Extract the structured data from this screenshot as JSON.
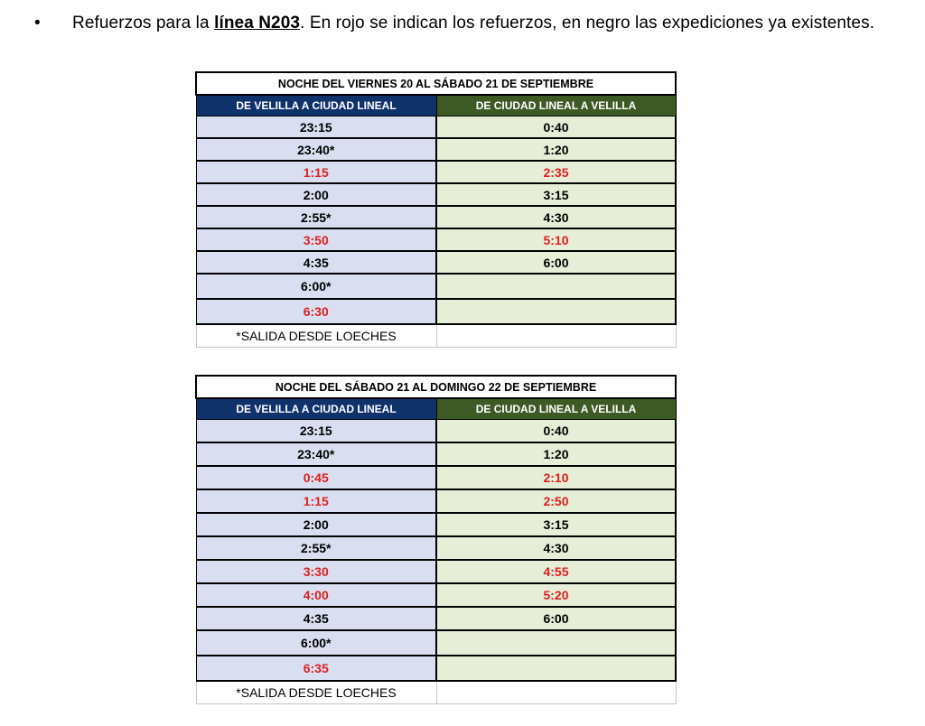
{
  "intro": {
    "bullet": "•",
    "text_before": "Refuerzos para la ",
    "line_name": "línea N203",
    "text_after": ". En rojo se indican los refuerzos, en negro las expediciones ya existentes."
  },
  "colors": {
    "reinforcement": "#e02020",
    "existing": "#000000",
    "header_left": "#10326b",
    "header_right": "#3d5a25"
  },
  "tables": [
    {
      "title": "NOCHE DEL VIERNES 20 AL SÁBADO 21 DE SEPTIEMBRE",
      "header_left": "DE VELILLA A CIUDAD LINEAL",
      "header_right": "DE CIUDAD LINEAL A VELILLA",
      "rows": [
        {
          "left": "23:15",
          "left_red": false,
          "right": "0:40",
          "right_red": false
        },
        {
          "left": "23:40*",
          "left_red": false,
          "right": "1:20",
          "right_red": false
        },
        {
          "left": "1:15",
          "left_red": true,
          "right": "2:35",
          "right_red": true
        },
        {
          "left": "2:00",
          "left_red": false,
          "right": "3:15",
          "right_red": false
        },
        {
          "left": "2:55*",
          "left_red": false,
          "right": "4:30",
          "right_red": false
        },
        {
          "left": "3:50",
          "left_red": true,
          "right": "5:10",
          "right_red": true
        },
        {
          "left": "4:35",
          "left_red": false,
          "right": "6:00",
          "right_red": false
        },
        {
          "left": "6:00*",
          "left_red": false,
          "right": "",
          "right_red": false
        },
        {
          "left": "6:30",
          "left_red": true,
          "right": "",
          "right_red": false
        }
      ],
      "note": "*SALIDA DESDE LOECHES"
    },
    {
      "title": "NOCHE DEL SÁBADO 21 AL DOMINGO 22 DE SEPTIEMBRE",
      "header_left": "DE VELILLA A CIUDAD LINEAL",
      "header_right": "DE CIUDAD LINEAL A VELILLA",
      "rows": [
        {
          "left": "23:15",
          "left_red": false,
          "right": "0:40",
          "right_red": false
        },
        {
          "left": "23:40*",
          "left_red": false,
          "right": "1:20",
          "right_red": false
        },
        {
          "left": "0:45",
          "left_red": true,
          "right": "2:10",
          "right_red": true
        },
        {
          "left": "1:15",
          "left_red": true,
          "right": "2:50",
          "right_red": true
        },
        {
          "left": "2:00",
          "left_red": false,
          "right": "3:15",
          "right_red": false
        },
        {
          "left": "2:55*",
          "left_red": false,
          "right": "4:30",
          "right_red": false
        },
        {
          "left": "3:30",
          "left_red": true,
          "right": "4:55",
          "right_red": true
        },
        {
          "left": "4:00",
          "left_red": true,
          "right": "5:20",
          "right_red": true
        },
        {
          "left": "4:35",
          "left_red": false,
          "right": "6:00",
          "right_red": false
        },
        {
          "left": "6:00*",
          "left_red": false,
          "right": "",
          "right_red": false
        },
        {
          "left": "6:35",
          "left_red": true,
          "right": "",
          "right_red": false
        }
      ],
      "note": "*SALIDA DESDE LOECHES"
    }
  ]
}
